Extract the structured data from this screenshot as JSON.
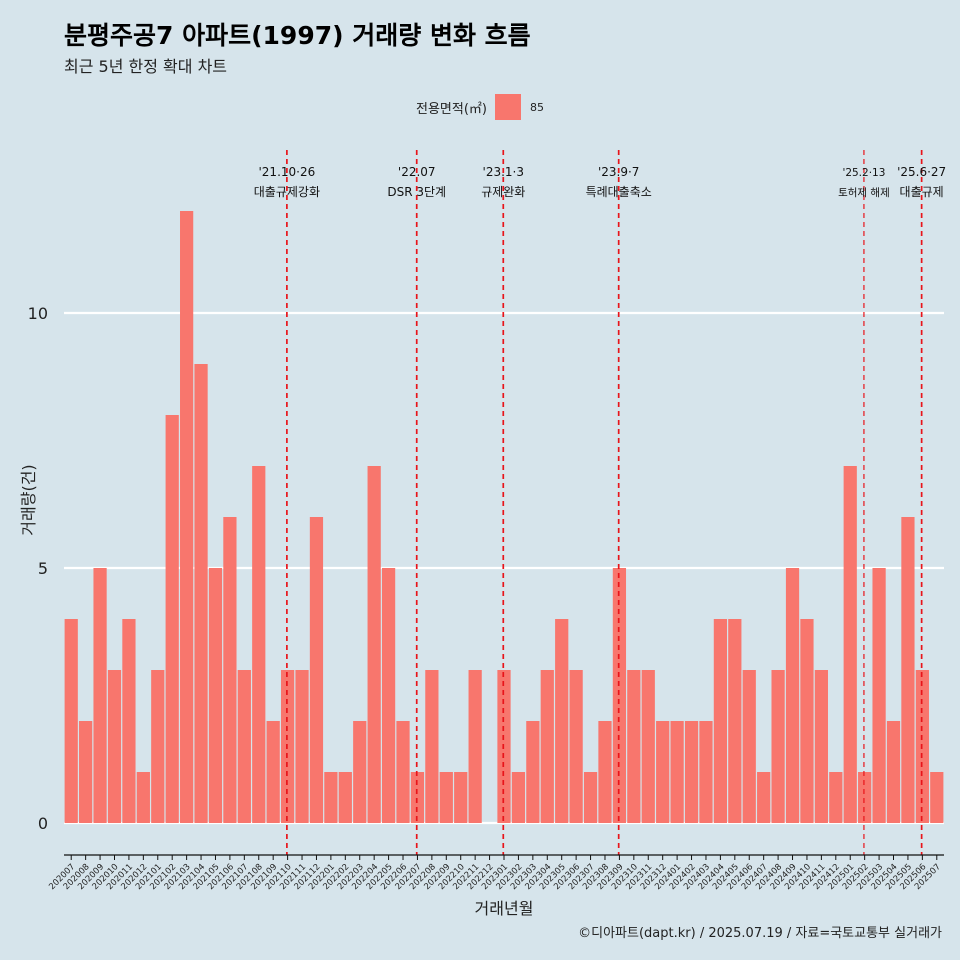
{
  "header": {
    "title": "분평주공7 아파트(1997) 거래량 변화 흐름",
    "subtitle": "최근 5년 한정 확대 차트"
  },
  "legend": {
    "title": "전용면적(㎡)",
    "value": "85",
    "color": "#F8766D"
  },
  "caption": "©디아파트(dapt.kr) / 2025.07.19 / 자료=국토교통부 실거래가",
  "chart_data": {
    "type": "bar",
    "xlabel": "거래년월",
    "ylabel": "거래량(건)",
    "ylim": [
      0,
      13
    ],
    "yticks": [
      0,
      5,
      10
    ],
    "grid": true,
    "legend_position": "top",
    "bar_color": "#F8766D",
    "categories": [
      "202007",
      "202008",
      "202009",
      "202010",
      "202011",
      "202012",
      "202101",
      "202102",
      "202103",
      "202104",
      "202105",
      "202106",
      "202107",
      "202108",
      "202109",
      "202110",
      "202111",
      "202112",
      "202201",
      "202202",
      "202203",
      "202204",
      "202205",
      "202206",
      "202207",
      "202208",
      "202209",
      "202210",
      "202211",
      "202212",
      "202301",
      "202302",
      "202303",
      "202304",
      "202305",
      "202306",
      "202307",
      "202308",
      "202309",
      "202310",
      "202311",
      "202312",
      "202401",
      "202402",
      "202403",
      "202404",
      "202405",
      "202406",
      "202407",
      "202408",
      "202409",
      "202410",
      "202411",
      "202412",
      "202501",
      "202502",
      "202503",
      "202504",
      "202505",
      "202506",
      "202507"
    ],
    "series": [
      {
        "values": [
          4,
          2,
          5,
          3,
          4,
          1,
          3,
          8,
          12,
          9,
          5,
          6,
          3,
          7,
          2,
          3,
          3,
          6,
          1,
          1,
          2,
          7,
          5,
          2,
          1,
          3,
          1,
          1,
          3,
          0,
          3,
          1,
          2,
          3,
          4,
          3,
          1,
          2,
          5,
          3,
          3,
          2,
          2,
          2,
          2,
          4,
          4,
          3,
          1,
          3,
          5,
          4,
          3,
          1,
          7,
          1,
          5,
          2,
          6,
          3,
          1
        ]
      }
    ],
    "annotations": [
      {
        "month": "202110",
        "date": "'21.10·26",
        "label": "대출규제강화"
      },
      {
        "month": "202207",
        "date": "'22.07",
        "label": "DSR 3단계"
      },
      {
        "month": "202301",
        "date": "'23.1·3",
        "label": "규제완화"
      },
      {
        "month": "202309",
        "date": "'23.9·7",
        "label": "특례대출축소"
      },
      {
        "month": "202502",
        "date": "'25.2·13",
        "label": "토허제 해제",
        "small": true
      },
      {
        "month": "202506",
        "date": "'25.6·27",
        "label": "대출규제"
      }
    ],
    "reference_line_color": "#e8141a"
  }
}
